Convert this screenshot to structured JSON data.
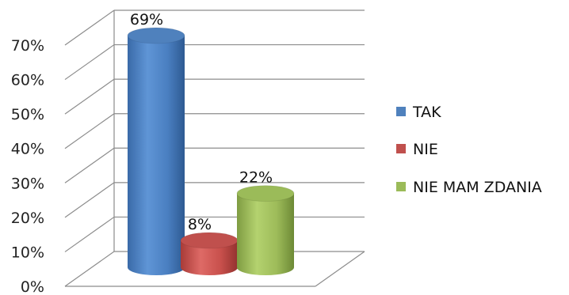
{
  "chart_data": {
    "type": "bar",
    "style": "3d-cylinder",
    "categories": [
      "TAK",
      "NIE",
      "NIE MAM ZDANIA"
    ],
    "values": [
      69,
      8,
      22
    ],
    "data_labels": [
      "69%",
      "8%",
      "22%"
    ],
    "ylim": [
      0,
      70
    ],
    "y_ticks": [
      "0%",
      "10%",
      "20%",
      "30%",
      "40%",
      "50%",
      "60%",
      "70%"
    ],
    "grid": true,
    "legend": "right",
    "colors": [
      "#4f81bd",
      "#c0504d",
      "#9bbb59"
    ]
  }
}
